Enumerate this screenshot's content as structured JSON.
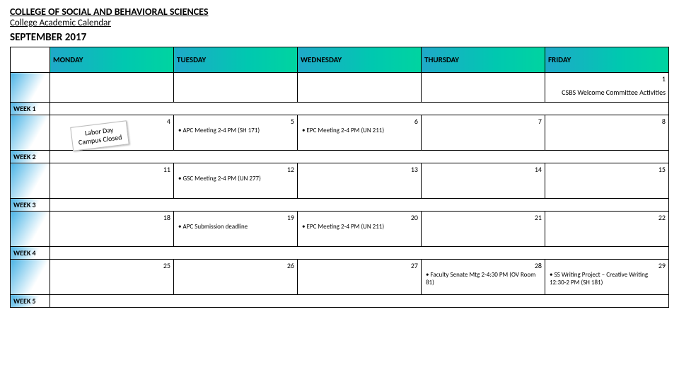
{
  "header": {
    "title1": "COLLEGE OF SOCIAL AND BEHAVIORAL SCIENCES",
    "title2": "College Academic Calendar",
    "month": "SEPTEMBER 2017"
  },
  "colors": {
    "header_gradient_from": "#1fa9c9",
    "header_gradient_to": "#00d4a0",
    "week_gradient_from": "#4bb4e6",
    "week_gradient_to": "#ffffff",
    "border": "#000000",
    "background": "#ffffff"
  },
  "days": [
    "MONDAY",
    "TUESDAY",
    "WEDNESDAY",
    "THURSDAY",
    "FRIDAY"
  ],
  "top_row": {
    "friday_num": "1",
    "friday_text": "CSBS Welcome Committee Activities"
  },
  "weeks": [
    {
      "label": "WEEK 1",
      "cells": [
        {
          "num": "4",
          "sticky": {
            "line1": "Labor Day",
            "line2": "Campus Closed"
          }
        },
        {
          "num": "5",
          "events": [
            "APC Meeting 2-4 PM (SH 171)"
          ]
        },
        {
          "num": "6",
          "events": [
            "EPC Meeting 2-4 PM (UN 211)"
          ]
        },
        {
          "num": "7",
          "events": []
        },
        {
          "num": "8",
          "events": []
        }
      ]
    },
    {
      "label": "WEEK 2",
      "cells": [
        {
          "num": "11",
          "events": []
        },
        {
          "num": "12",
          "events": [
            "GSC Meeting 2-4 PM (UN 277)"
          ]
        },
        {
          "num": "13",
          "events": []
        },
        {
          "num": "14",
          "events": []
        },
        {
          "num": "15",
          "events": []
        }
      ]
    },
    {
      "label": "WEEK 3",
      "cells": [
        {
          "num": "18",
          "events": []
        },
        {
          "num": "19",
          "events": [
            "APC Submission deadline"
          ]
        },
        {
          "num": "20",
          "events": [
            "EPC Meeting 2-4 PM (UN 211)"
          ]
        },
        {
          "num": "21",
          "events": []
        },
        {
          "num": "22",
          "events": []
        }
      ]
    },
    {
      "label": "WEEK 4",
      "cells": [
        {
          "num": "25",
          "events": []
        },
        {
          "num": "26",
          "events": []
        },
        {
          "num": "27",
          "events": []
        },
        {
          "num": "28",
          "events": [
            "Faculty Senate Mtg 2-4:30 PM (OV Room 81)"
          ]
        },
        {
          "num": "29",
          "events": [
            "SS Writing Project – Creative Writing 12:30-2 PM (SH 181)"
          ]
        }
      ]
    },
    {
      "label": "WEEK 5",
      "cells": []
    }
  ]
}
